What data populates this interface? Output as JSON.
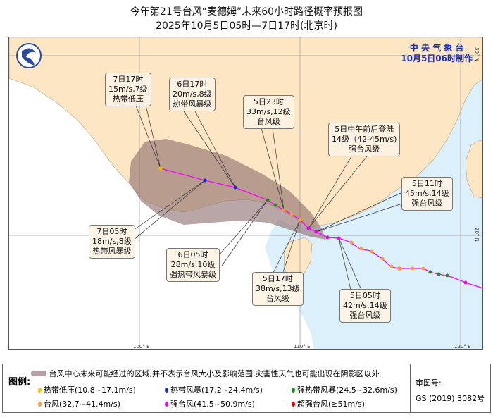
{
  "header": {
    "title": "今年第21号台风“麦德姆”未来60小时路径概率预报图",
    "subtitle": "2025年10月5日05时—7日17时(北京时)"
  },
  "agency": {
    "name": "中 央 气 象 台",
    "made": "10月5日06时制作"
  },
  "axes": {
    "lon": [
      "100° E",
      "110° E",
      "120° E"
    ],
    "lat": [
      "30° N",
      "20° N"
    ]
  },
  "colors": {
    "land_china": "#fde6c4",
    "sea": "#dcf0fb",
    "other_land": "#ffffff",
    "cone": "#8a6a6a",
    "track": "#ff00ff"
  },
  "track_labels": [
    {
      "time": "7日17时",
      "wind": "15m/s,7级",
      "grade": "热带低压"
    },
    {
      "time": "6日17时",
      "wind": "20m/s,8级",
      "grade": "热带风暴级"
    },
    {
      "time": "5日23时",
      "wind": "33m/s,12级",
      "grade": "台风级"
    },
    {
      "time": "5日中午前后登陆",
      "wind": "14级（42-45m/s)",
      "grade": "强台风级"
    },
    {
      "time": "5日11时",
      "wind": "45m/s,14级",
      "grade": "强台风级"
    },
    {
      "time": "7日05时",
      "wind": "18m/s,8级",
      "grade": "热带风暴级"
    },
    {
      "time": "6日05时",
      "wind": "28m/s,10级",
      "grade": "强热带风暴级"
    },
    {
      "time": "5日17时",
      "wind": "38m/s,13级",
      "grade": "台风级"
    },
    {
      "time": "5日05时",
      "wind": "42m/s,14级",
      "grade": "强台风级"
    }
  ],
  "legend": {
    "title": "图例:",
    "cone_text": "台风中心未来可能经过的区域,并不表示台风大小及影响范围,灾害性天气也可能出现在阴影区以外",
    "items": [
      {
        "label": "热带低压(10.8~17.1m/s)",
        "color": "#f5c400"
      },
      {
        "label": "热带风暴(17.2~24.4m/s)",
        "color": "#1a2ccc"
      },
      {
        "label": "强热带风暴(24.5~32.6m/s)",
        "color": "#1f8a1f"
      },
      {
        "label": "台风(32.7~41.4m/s)",
        "color": "#ff9a40"
      },
      {
        "label": "强台风(41.5~50.9m/s)",
        "color": "#ee00ee"
      },
      {
        "label": "超强台风(≥51m/s)",
        "color": "#e00000"
      }
    ],
    "review_label": "审图号:",
    "review_no": "GS (2019) 3082号"
  }
}
